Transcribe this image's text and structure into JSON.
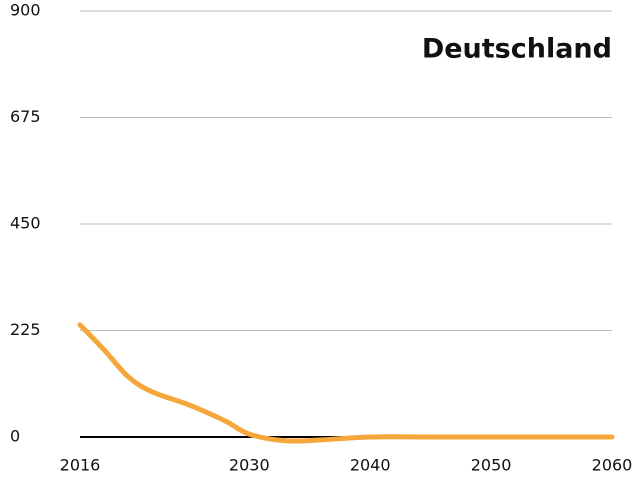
{
  "chart_data": {
    "type": "line",
    "title": "Deutschland",
    "x": [
      2016,
      2018,
      2020,
      2022,
      2025,
      2028,
      2030,
      2033,
      2036,
      2040,
      2045,
      2050,
      2055,
      2060
    ],
    "series": [
      {
        "name": "Deutschland",
        "color": "#f5a73b",
        "values": [
          237,
          184,
          127,
          95,
          68,
          34,
          6,
          -8,
          -6,
          0,
          0,
          0,
          0,
          0
        ]
      }
    ],
    "xlim": [
      2016,
      2060
    ],
    "xticks": [
      2016,
      2030,
      2040,
      2050,
      2060
    ],
    "ylim": [
      0,
      900
    ],
    "yticks": [
      0,
      225,
      450,
      675,
      900
    ],
    "grid": true
  }
}
